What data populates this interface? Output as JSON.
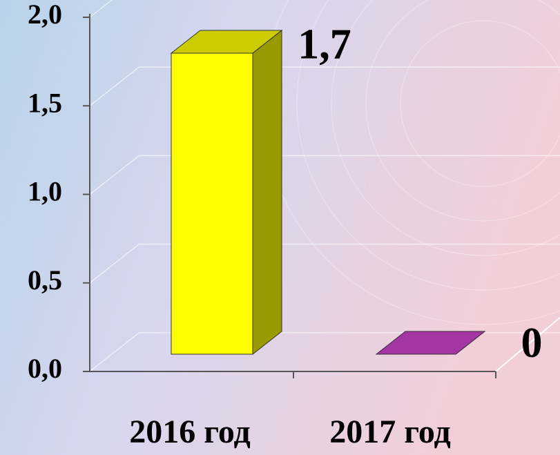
{
  "chart_data": {
    "type": "bar3d",
    "categories": [
      "2016 год",
      "2017 год"
    ],
    "values": [
      1.7,
      0
    ],
    "value_labels": [
      "1,7",
      "0"
    ],
    "colors": [
      "#ffff00",
      "#cc44cc"
    ],
    "ylim": [
      0,
      2
    ],
    "yticks": [
      {
        "value": 0,
        "label": "0,0"
      },
      {
        "value": 0.5,
        "label": "0,5"
      },
      {
        "value": 1,
        "label": "1,0"
      },
      {
        "value": 1.5,
        "label": "1,5"
      },
      {
        "value": 2,
        "label": "2,0"
      }
    ],
    "grid": true
  }
}
